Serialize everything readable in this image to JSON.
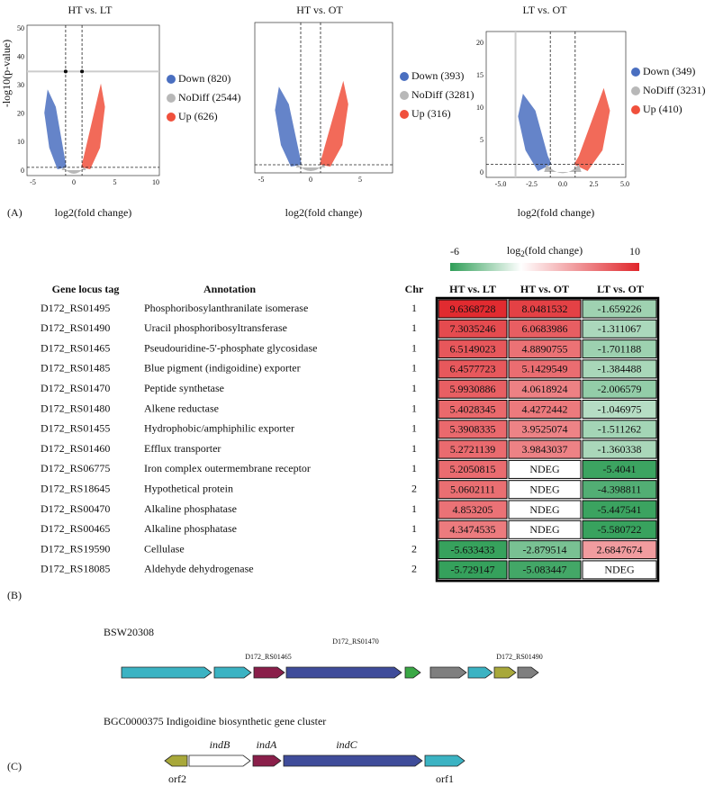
{
  "panel_a": {
    "label": "(A)",
    "plots": [
      {
        "title": "HT vs. LT",
        "xlabel": "log2(fold change)",
        "ylabel": "-log10(p-value)",
        "xticks": [
          "-5",
          "0",
          "5",
          "10"
        ],
        "yticks": [
          "0",
          "10",
          "20",
          "30",
          "40",
          "50"
        ],
        "legend": [
          "Down (820)",
          "NoDiff (2544)",
          "Up (626)"
        ]
      },
      {
        "title": "HT vs. OT",
        "xlabel": "log2(fold change)",
        "xticks": [
          "-5",
          "0",
          "5"
        ],
        "legend": [
          "Down (393)",
          "NoDiff (3281)",
          "Up (316)"
        ]
      },
      {
        "title": "LT vs. OT",
        "xlabel": "log2(fold change)",
        "xticks": [
          "-5.0",
          "-2.5",
          "0.0",
          "2.5",
          "5.0"
        ],
        "yticks": [
          "0",
          "5",
          "10",
          "15",
          "20"
        ],
        "legend": [
          "Down (349)",
          "NoDiff (3231)",
          "Up (410)"
        ]
      }
    ]
  },
  "panel_b": {
    "label": "(B)",
    "colorbar": {
      "min": "-6",
      "max": "10",
      "title": [
        "log",
        "2",
        "(fold change)"
      ],
      "low": "#2f9e57",
      "high": "#e0262b"
    },
    "header": [
      "Gene locus tag",
      "Annotation",
      "Chr",
      "HT vs. LT",
      "HT vs. OT",
      "LT vs. OT"
    ],
    "rows": [
      [
        "D172_RS01495",
        "Phosphoribosylanthranilate isomerase",
        "1",
        "9.6368728",
        "8.0481532",
        "-1.659226"
      ],
      [
        "D172_RS01490",
        "Uracil phosphoribosyltransferase",
        "1",
        "7.3035246",
        "6.0683986",
        "-1.311067"
      ],
      [
        "D172_RS01465",
        "Pseudouridine-5'-phosphate glycosidase",
        "1",
        "6.5149023",
        "4.8890755",
        "-1.701188"
      ],
      [
        "D172_RS01485",
        "Blue pigment (indigoidine) exporter",
        "1",
        "6.4577723",
        "5.1429549",
        "-1.384488"
      ],
      [
        "D172_RS01470",
        "Peptide synthetase",
        "1",
        "5.9930886",
        "4.0618924",
        "-2.006579"
      ],
      [
        "D172_RS01480",
        "Alkene reductase",
        "1",
        "5.4028345",
        "4.4272442",
        "-1.046975"
      ],
      [
        "D172_RS01455",
        "Hydrophobic/amphiphilic exporter",
        "1",
        "5.3908335",
        "3.9525074",
        "-1.511262"
      ],
      [
        "D172_RS01460",
        "Efflux transporter",
        "1",
        "5.2721139",
        "3.9843037",
        "-1.360338"
      ],
      [
        "D172_RS06775",
        "Iron complex outermembrane receptor",
        "1",
        "5.2050815",
        "NDEG",
        "-5.4041"
      ],
      [
        "D172_RS18645",
        "Hypothetical protein",
        "2",
        "5.0602111",
        "NDEG",
        "-4.398811"
      ],
      [
        "D172_RS00470",
        "Alkaline phosphatase",
        "1",
        "4.853205",
        "NDEG",
        "-5.447541"
      ],
      [
        "D172_RS00465",
        "Alkaline phosphatase",
        "1",
        "4.3474535",
        "NDEG",
        "-5.580722"
      ],
      [
        "D172_RS19590",
        "Cellulase",
        "2",
        "-5.633433",
        "-2.879514",
        "2.6847674"
      ],
      [
        "D172_RS18085",
        "Aldehyde dehydrogenase",
        "2",
        "-5.729147",
        "-5.083447",
        "NDEG"
      ]
    ]
  },
  "panel_c": {
    "label": "(C)",
    "cluster1": {
      "name": "BSW20308",
      "tags": [
        "D172_RS01470",
        "D172_RS01465",
        "D172_RS01490"
      ]
    },
    "cluster2": {
      "name": "BGC0000375 Indigoidine biosynthetic gene cluster",
      "genes": [
        "indB",
        "indA",
        "indC",
        "orf2",
        "orf1"
      ]
    }
  }
}
